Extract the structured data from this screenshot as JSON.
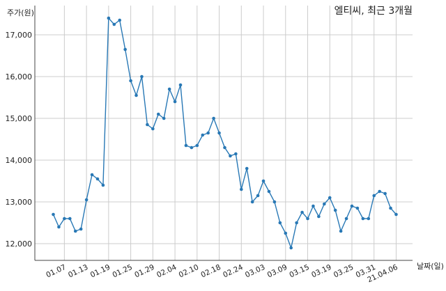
{
  "chart_data": {
    "type": "line",
    "title": "엘티씨, 최근 3개월",
    "ylabel": "주가(원)",
    "xlabel": "날짜(일)",
    "ylim": [
      11600,
      17700
    ],
    "yticks": [
      12000,
      13000,
      14000,
      15000,
      16000,
      17000
    ],
    "ytick_labels": [
      "12,000",
      "13,000",
      "14,000",
      "15,000",
      "16,000",
      "17,000"
    ],
    "xtick_labels": [
      "01.07",
      "01.13",
      "01.19",
      "01.25",
      "01.29",
      "02.04",
      "02.10",
      "02.18",
      "02.24",
      "03.03",
      "03.09",
      "03.15",
      "03.19",
      "03.25",
      "03.31",
      "21.04.06"
    ],
    "xtick_indices": [
      2,
      6,
      10,
      14,
      18,
      22,
      26,
      30,
      34,
      38,
      42,
      46,
      50,
      54,
      58,
      62
    ],
    "grid": true,
    "line_color": "#2878b5",
    "series": [
      {
        "values": [
          12700,
          12400,
          12600,
          12600,
          12300,
          12350,
          13050,
          13650,
          13550,
          13400,
          17400,
          17250,
          17350,
          16650,
          15900,
          15550,
          16000,
          14850,
          14750,
          15100,
          15000,
          15700,
          15400,
          15800,
          14350,
          14300,
          14350,
          14600,
          14650,
          15000,
          14650,
          14300,
          14100,
          14150,
          13300,
          13800,
          13000,
          13150,
          13500,
          13250,
          13000,
          12500,
          12250,
          11900,
          12500,
          12750,
          12600,
          12900,
          12650,
          12950,
          13100,
          12800,
          12300,
          12600,
          12900,
          12850,
          12600,
          12600,
          13150,
          13250,
          13200,
          12850,
          12700
        ]
      }
    ]
  }
}
